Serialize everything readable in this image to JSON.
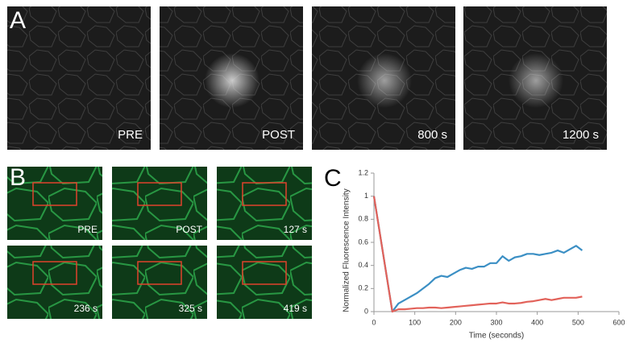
{
  "panel_a": {
    "label": "A",
    "images": [
      {
        "caption": "PRE"
      },
      {
        "caption": "POST"
      },
      {
        "caption": "800 s"
      },
      {
        "caption": "1200 s"
      }
    ]
  },
  "panel_b": {
    "label": "B",
    "images": [
      {
        "caption": "PRE"
      },
      {
        "caption": "POST"
      },
      {
        "caption": "127 s"
      },
      {
        "caption": "236 s"
      },
      {
        "caption": "325 s"
      },
      {
        "caption": "419 s"
      }
    ]
  },
  "panel_c": {
    "label": "C"
  },
  "chart_data": {
    "type": "line",
    "x_label": "Time (seconds)",
    "y_label": "Normalized Fluorescence Intensity",
    "x": [
      0,
      45,
      60,
      75,
      90,
      105,
      120,
      135,
      150,
      165,
      180,
      195,
      210,
      225,
      240,
      255,
      270,
      285,
      300,
      315,
      330,
      345,
      360,
      375,
      390,
      405,
      420,
      435,
      450,
      465,
      480,
      495,
      510
    ],
    "series": [
      {
        "color": "#3b8fc4",
        "values": [
          1,
          0,
          0.07,
          0.1,
          0.13,
          0.16,
          0.2,
          0.24,
          0.29,
          0.31,
          0.3,
          0.33,
          0.36,
          0.38,
          0.37,
          0.39,
          0.39,
          0.42,
          0.42,
          0.48,
          0.44,
          0.47,
          0.48,
          0.5,
          0.5,
          0.49,
          0.5,
          0.51,
          0.53,
          0.51,
          0.54,
          0.57,
          0.53
        ]
      },
      {
        "color": "#e2625a",
        "values": [
          1,
          0,
          0.02,
          0.02,
          0.025,
          0.03,
          0.03,
          0.035,
          0.035,
          0.03,
          0.035,
          0.04,
          0.045,
          0.05,
          0.055,
          0.06,
          0.065,
          0.07,
          0.07,
          0.08,
          0.07,
          0.07,
          0.075,
          0.085,
          0.09,
          0.1,
          0.11,
          0.1,
          0.11,
          0.12,
          0.12,
          0.12,
          0.13
        ]
      }
    ],
    "xlim": [
      0,
      600
    ],
    "xticks": [
      0,
      100,
      200,
      300,
      400,
      500,
      600
    ],
    "ylim": [
      0,
      1.2
    ],
    "yticks": [
      0,
      0.2,
      0.4,
      0.6,
      0.8,
      1,
      1.2
    ],
    "grid": false
  }
}
